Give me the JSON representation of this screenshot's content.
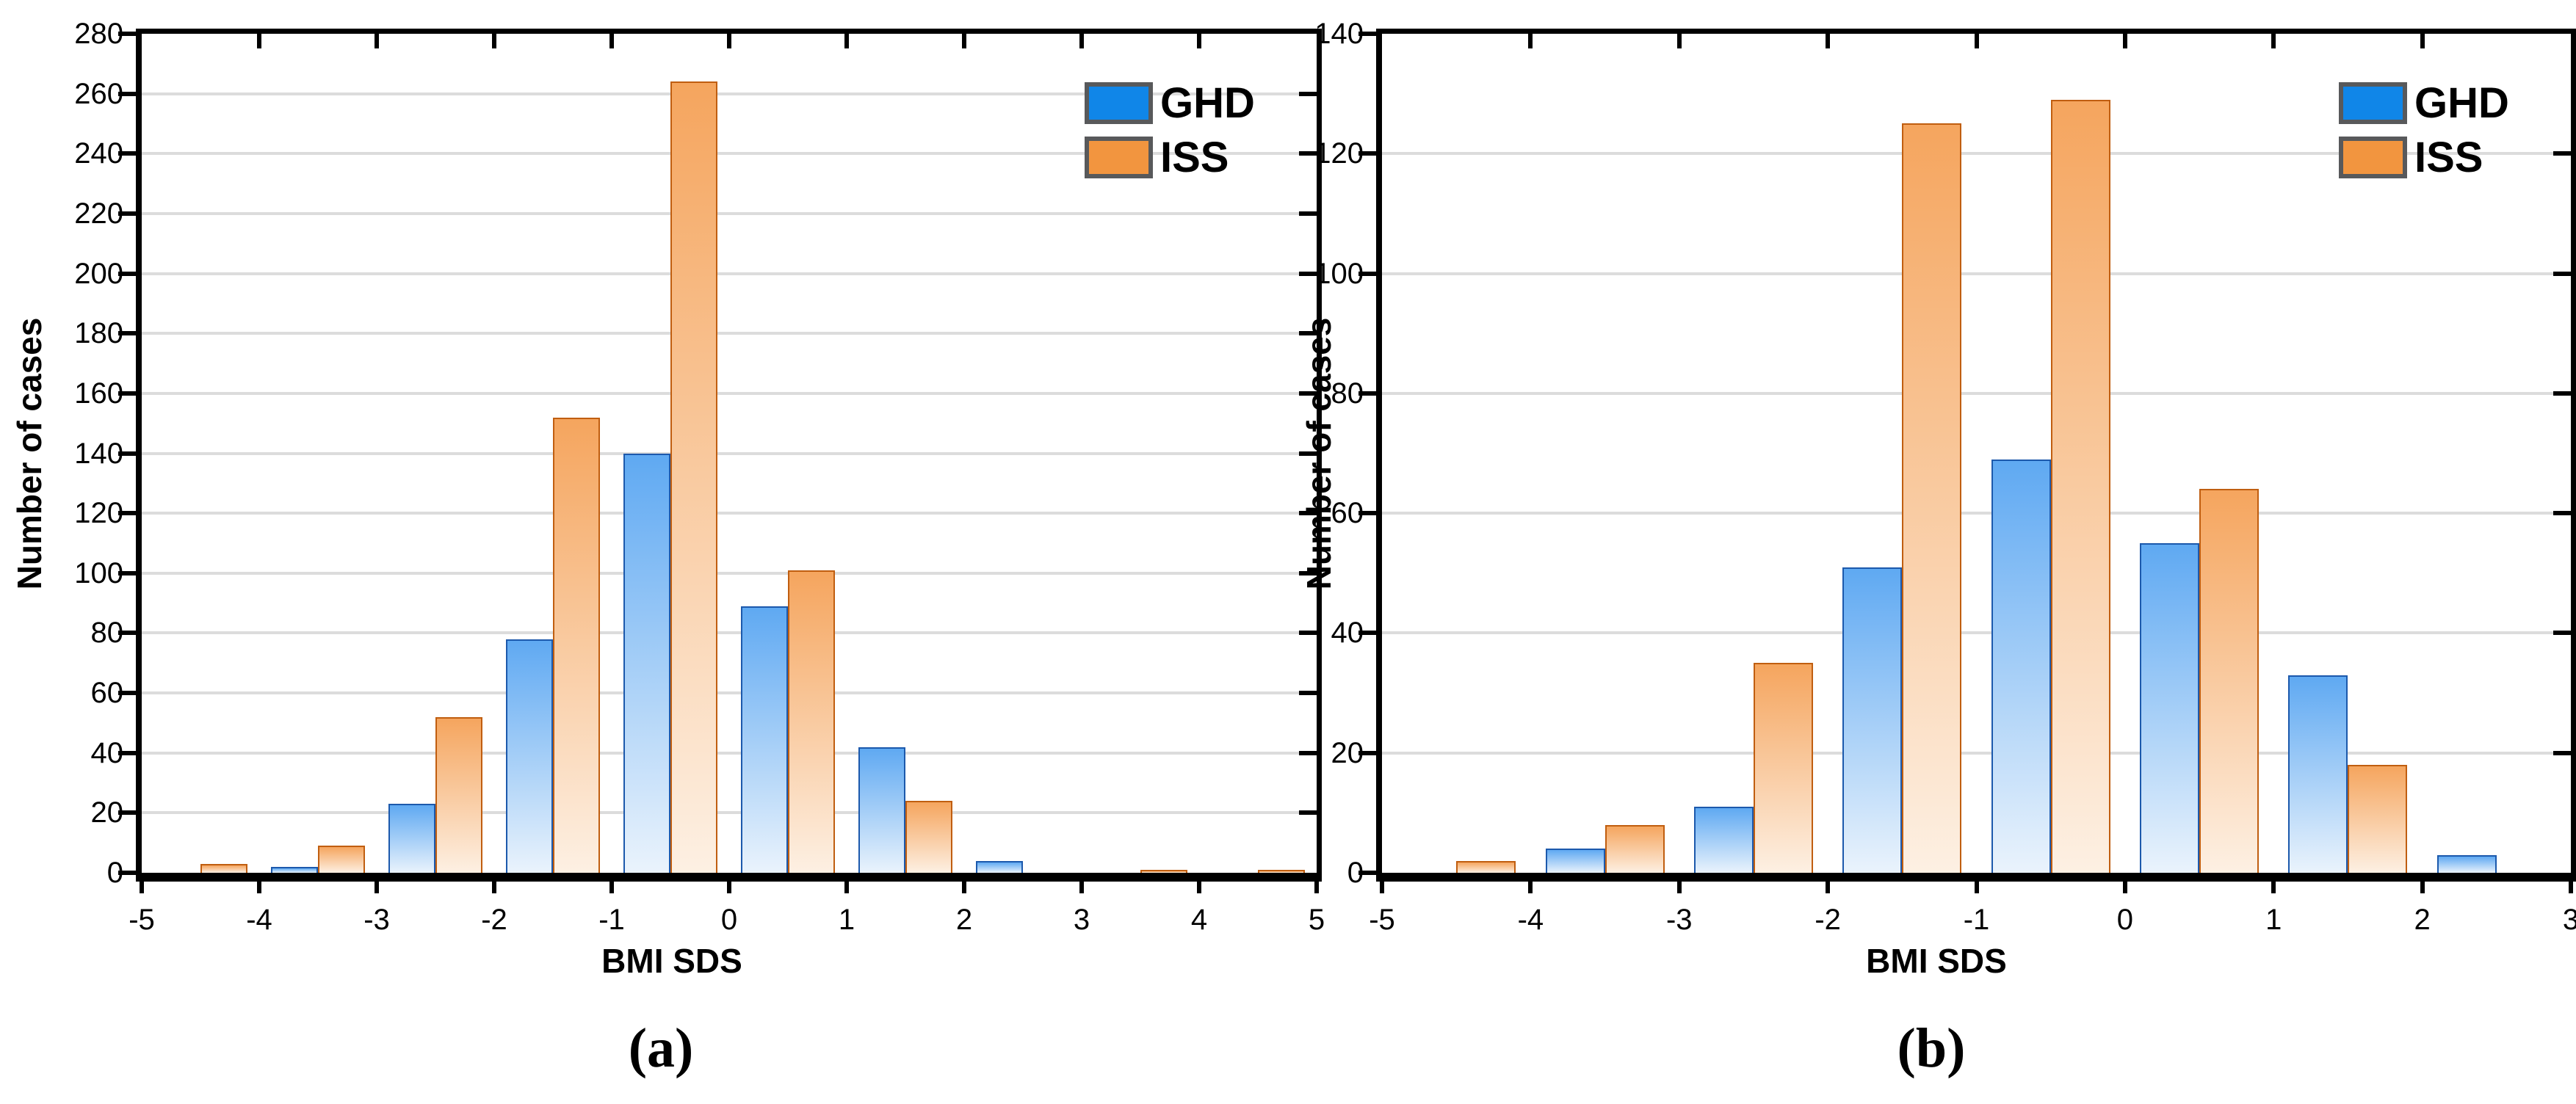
{
  "figure": {
    "background": "#ffffff",
    "legend": {
      "series1_label": "GHD",
      "series2_label": "ISS"
    },
    "colors": {
      "ghd_legend": "#1086E8",
      "iss_legend": "#F2953F",
      "ghd_bar_top": "#5FA9F2",
      "ghd_bar_bottom": "#EAF3FC",
      "ghd_bar_stroke": "#1C59AC",
      "iss_bar_top": "#F5A55E",
      "iss_bar_bottom": "#FDF0E3",
      "iss_bar_stroke": "#C05E10",
      "gridline": "#DCDCDC",
      "axis": "#000000",
      "legend_border": "#58595B"
    }
  },
  "chart_data": [
    {
      "type": "bar",
      "panel_label": "(a)",
      "xlabel": "BMI SDS",
      "ylabel": "Number of cases",
      "ylim": [
        0,
        280
      ],
      "ytick_step": 20,
      "ytick_labels": [
        "0",
        "20",
        "40",
        "60",
        "80",
        "100",
        "120",
        "140",
        "160",
        "180",
        "200",
        "220",
        "240",
        "260",
        "280"
      ],
      "xlim": [
        -5,
        5
      ],
      "xtick_labels": [
        "-5",
        "-4",
        "-3",
        "-2",
        "-1",
        "0",
        "1",
        "2",
        "3",
        "4",
        "5"
      ],
      "grid": "horizontal",
      "legend_position": "top-right",
      "bin_width": 1,
      "bin_starts": [
        -5,
        -4,
        -3,
        -2,
        -1,
        0,
        1,
        2,
        3,
        4
      ],
      "series": [
        {
          "name": "GHD",
          "values": [
            0,
            2,
            23,
            78,
            140,
            89,
            42,
            4,
            0,
            0
          ]
        },
        {
          "name": "ISS",
          "values": [
            3,
            9,
            52,
            152,
            264,
            101,
            24,
            0,
            1,
            1
          ]
        }
      ]
    },
    {
      "type": "bar",
      "panel_label": "(b)",
      "xlabel": "BMI SDS",
      "ylabel": "Number of cases",
      "ylim": [
        0,
        140
      ],
      "ytick_step": 20,
      "ytick_labels": [
        "0",
        "20",
        "40",
        "60",
        "80",
        "100",
        "120",
        "140"
      ],
      "xlim": [
        -5,
        3
      ],
      "xtick_labels": [
        "-5",
        "-4",
        "-3",
        "-2",
        "-1",
        "0",
        "1",
        "2",
        "3"
      ],
      "grid": "horizontal",
      "legend_position": "top-right",
      "bin_width": 1,
      "bin_starts": [
        -5,
        -4,
        -3,
        -2,
        -1,
        0,
        1,
        2
      ],
      "series": [
        {
          "name": "GHD",
          "values": [
            0,
            4,
            11,
            51,
            69,
            55,
            33,
            3
          ]
        },
        {
          "name": "ISS",
          "values": [
            2,
            8,
            35,
            125,
            129,
            64,
            18,
            0
          ]
        }
      ]
    }
  ]
}
